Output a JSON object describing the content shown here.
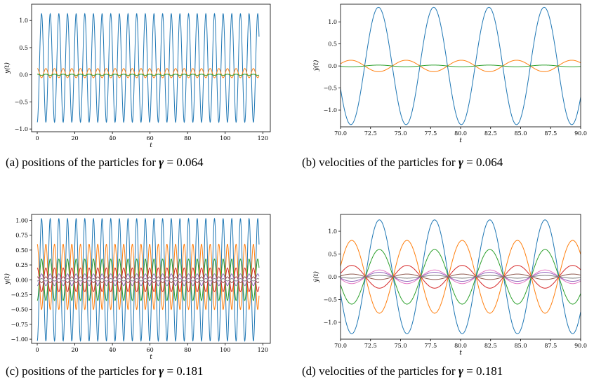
{
  "colors": {
    "blue": "#1f77b4",
    "orange": "#ff7f0e",
    "green": "#2ca02c",
    "red": "#d62728",
    "purple": "#9467bd",
    "brown": "#8c564b",
    "pink": "#e377c2",
    "gray": "#7f7f7f",
    "olive": "#bcbd22",
    "cyan": "#17becf"
  },
  "captions": {
    "a": {
      "prefix": "(a) positions of the particles for ",
      "gamma": "γ",
      "suffix": " = 0.064"
    },
    "b": {
      "prefix": "(b) velocities of the particles for ",
      "gamma": "γ",
      "suffix": " = 0.064"
    },
    "c": {
      "prefix": "(c) positions of the particles for ",
      "gamma": "γ",
      "suffix": " = 0.181"
    },
    "d": {
      "prefix": "(d) velocities of the particles for ",
      "gamma": "γ",
      "suffix": " = 0.181"
    }
  },
  "chart_data": [
    {
      "id": "a",
      "type": "line",
      "xlabel": "t",
      "ylabel": "y(t)",
      "xlim": [
        -3,
        124
      ],
      "ylim": [
        -1.05,
        1.3
      ],
      "xticks": [
        0,
        20,
        40,
        60,
        80,
        100,
        120
      ],
      "yticks": [
        -1.0,
        -0.5,
        0.0,
        0.5,
        1.0
      ],
      "ytick_labels": [
        "−1.0",
        "−0.5",
        "0.0",
        "0.5",
        "1.0"
      ],
      "t_range": [
        0,
        118
      ],
      "series": [
        {
          "color": "blue",
          "amplitude": 1.0,
          "offset": 0.125,
          "period": 4.6,
          "phase": 3.1416
        },
        {
          "color": "orange",
          "amplitude": 0.085,
          "offset": 0.03,
          "period": 4.6,
          "phase": 0
        },
        {
          "color": "green",
          "amplitude": 0.01,
          "offset": 0.0,
          "period": 4.6,
          "phase": 0
        }
      ]
    },
    {
      "id": "b",
      "type": "line",
      "xlabel": "t",
      "ylabel": "ẏ(t)",
      "xlim": [
        70,
        90
      ],
      "ylim": [
        -1.38,
        1.4
      ],
      "xticks": [
        70.0,
        72.5,
        75.0,
        77.5,
        80.0,
        82.5,
        85.0,
        87.5,
        90.0
      ],
      "xtick_labels": [
        "70.0",
        "72.5",
        "75.0",
        "77.5",
        "80.0",
        "82.5",
        "85.0",
        "87.5",
        "90.0"
      ],
      "yticks": [
        -1.0,
        -0.5,
        0.0,
        0.5,
        1.0
      ],
      "ytick_labels": [
        "−1.0",
        "−0.5",
        "0.0",
        "0.5",
        "1.0"
      ],
      "t_range": [
        70,
        90
      ],
      "series": [
        {
          "color": "blue",
          "amplitude": 1.33,
          "offset": 0.0,
          "period": 4.6,
          "phase": 0.6
        },
        {
          "color": "orange",
          "amplitude": 0.13,
          "offset": 0.0,
          "period": 4.6,
          "phase": 3.74
        },
        {
          "color": "green",
          "amplitude": 0.02,
          "offset": 0.0,
          "period": 4.6,
          "phase": 0.6
        }
      ]
    },
    {
      "id": "c",
      "type": "line",
      "xlabel": "t",
      "ylabel": "y(t)",
      "xlim": [
        -3,
        124
      ],
      "ylim": [
        -1.07,
        1.1
      ],
      "xticks": [
        0,
        20,
        40,
        60,
        80,
        100,
        120
      ],
      "yticks": [
        -1.0,
        -0.75,
        -0.5,
        -0.25,
        0.0,
        0.25,
        0.5,
        0.75,
        1.0
      ],
      "ytick_labels": [
        "−1.00",
        "−0.75",
        "−0.50",
        "−0.25",
        "0.00",
        "0.25",
        "0.50",
        "0.75",
        "1.00"
      ],
      "t_range": [
        0,
        118
      ],
      "series": [
        {
          "color": "blue",
          "amplitude": 1.03,
          "offset": 0.0,
          "period": 4.6,
          "phase": 3.1416
        },
        {
          "color": "orange",
          "amplitude": 0.55,
          "offset": 0.05,
          "period": 4.6,
          "phase": 0
        },
        {
          "color": "green",
          "amplitude": 0.35,
          "offset": 0.0,
          "period": 4.6,
          "phase": 3.1416
        },
        {
          "color": "red",
          "amplitude": 0.2,
          "offset": 0.0,
          "period": 4.6,
          "phase": 0
        },
        {
          "color": "purple",
          "amplitude": 0.1,
          "offset": 0.0,
          "period": 4.6,
          "phase": 3.1416
        },
        {
          "color": "brown",
          "amplitude": 0.05,
          "offset": 0.0,
          "period": 4.6,
          "phase": 0
        },
        {
          "color": "gray",
          "amplitude": 0.02,
          "offset": 0.0,
          "period": 4.6,
          "phase": 3.1416
        }
      ]
    },
    {
      "id": "d",
      "type": "line",
      "xlabel": "t",
      "ylabel": "ẏ(t)",
      "xlim": [
        70,
        90
      ],
      "ylim": [
        -1.37,
        1.37
      ],
      "xticks": [
        70.0,
        72.5,
        75.0,
        77.5,
        80.0,
        82.5,
        85.0,
        87.5,
        90.0
      ],
      "xtick_labels": [
        "70.0",
        "72.5",
        "75.0",
        "77.5",
        "80.0",
        "82.5",
        "85.0",
        "87.5",
        "90.0"
      ],
      "yticks": [
        -1.0,
        -0.5,
        0.0,
        0.5,
        1.0
      ],
      "ytick_labels": [
        "−1.0",
        "−0.5",
        "0.0",
        "0.5",
        "1.0"
      ],
      "t_range": [
        70,
        90
      ],
      "series": [
        {
          "color": "blue",
          "amplitude": 1.25,
          "offset": 0.0,
          "period": 4.6,
          "phase": 0.5
        },
        {
          "color": "orange",
          "amplitude": 0.8,
          "offset": 0.0,
          "period": 4.6,
          "phase": 3.64
        },
        {
          "color": "green",
          "amplitude": 0.6,
          "offset": 0.0,
          "period": 4.6,
          "phase": 0.5
        },
        {
          "color": "red",
          "amplitude": 0.25,
          "offset": 0.0,
          "period": 4.6,
          "phase": 3.64
        },
        {
          "color": "pink",
          "amplitude": 0.15,
          "offset": 0.0,
          "period": 4.6,
          "phase": 0.5
        },
        {
          "color": "purple",
          "amplitude": 0.1,
          "offset": 0.0,
          "period": 4.6,
          "phase": 0.5
        },
        {
          "color": "brown",
          "amplitude": 0.06,
          "offset": 0.0,
          "period": 4.6,
          "phase": 3.64
        },
        {
          "color": "gray",
          "amplitude": 0.03,
          "offset": 0.0,
          "period": 4.6,
          "phase": 0.5
        }
      ]
    }
  ]
}
